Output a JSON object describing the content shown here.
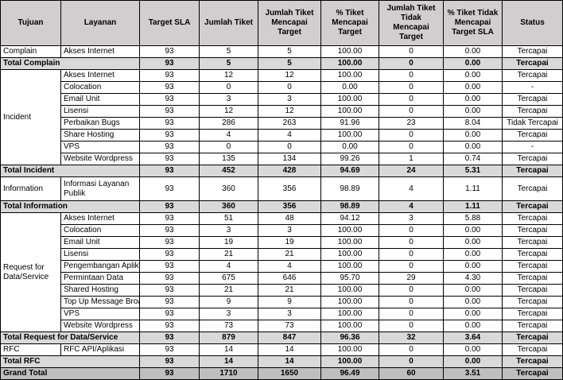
{
  "table": {
    "header": [
      "Tujuan",
      "Layanan",
      "Target SLA",
      "Jumlah Tiket",
      "Jumlah Tiket Mencapai Target",
      "% Tiket Mencapai Target",
      "Jumlah Tiket Tidak Mencapai Target",
      "% Tiket Tidak Mencapai Target SLA",
      "Status"
    ],
    "groups": [
      {
        "tujuan": "Complain",
        "rows": [
          [
            "Akses Internet",
            "93",
            "5",
            "5",
            "100.00",
            "0",
            "0.00",
            "Tercapai"
          ]
        ],
        "total": [
          "Total Complain",
          "93",
          "5",
          "5",
          "100.00",
          "0",
          "0.00",
          "Tercapai"
        ]
      },
      {
        "tujuan": "Incident",
        "rows": [
          [
            "Akses Internet",
            "93",
            "12",
            "12",
            "100.00",
            "0",
            "0.00",
            "Tercapai"
          ],
          [
            "Colocation",
            "93",
            "0",
            "0",
            "0.00",
            "0",
            "0.00",
            "-"
          ],
          [
            "Email Unit",
            "93",
            "3",
            "3",
            "100.00",
            "0",
            "0.00",
            "Tercapai"
          ],
          [
            "Lisensi",
            "93",
            "12",
            "12",
            "100.00",
            "0",
            "0.00",
            "Tercapai"
          ],
          [
            "Perbaikan Bugs",
            "93",
            "286",
            "263",
            "91.96",
            "23",
            "8.04",
            "Tidak Tercapai"
          ],
          [
            "Share Hosting",
            "93",
            "4",
            "4",
            "100.00",
            "0",
            "0.00",
            "Tercapai"
          ],
          [
            "VPS",
            "93",
            "0",
            "0",
            "0.00",
            "0",
            "0.00",
            "-"
          ],
          [
            "Website Wordpress",
            "93",
            "135",
            "134",
            "99.26",
            "1",
            "0.74",
            "Tercapai"
          ]
        ],
        "total": [
          "Total Incident",
          "93",
          "452",
          "428",
          "94.69",
          "24",
          "5.31",
          "Tercapai"
        ]
      },
      {
        "tujuan": "Information",
        "rows": [
          [
            "Informasi Layanan Publik",
            "93",
            "360",
            "356",
            "98.89",
            "4",
            "1.11",
            "Tercapai"
          ]
        ],
        "total": [
          "Total Information",
          "93",
          "360",
          "356",
          "98.89",
          "4",
          "1.11",
          "Tercapai"
        ]
      },
      {
        "tujuan": "Request for Data/Service",
        "rows": [
          [
            "Akses Internet",
            "93",
            "51",
            "48",
            "94.12",
            "3",
            "5.88",
            "Tercapai"
          ],
          [
            "Colocation",
            "93",
            "3",
            "3",
            "100.00",
            "0",
            "0.00",
            "Tercapai"
          ],
          [
            "Email Unit",
            "93",
            "19",
            "19",
            "100.00",
            "0",
            "0.00",
            "Tercapai"
          ],
          [
            "Lisensi",
            "93",
            "21",
            "21",
            "100.00",
            "0",
            "0.00",
            "Tercapai"
          ],
          [
            "Pengembangan Aplik",
            "93",
            "4",
            "4",
            "100.00",
            "0",
            "0.00",
            "Tercapai"
          ],
          [
            "Permintaan Data",
            "93",
            "675",
            "646",
            "95.70",
            "29",
            "4.30",
            "Tercapai"
          ],
          [
            "Shared Hosting",
            "93",
            "21",
            "21",
            "100.00",
            "0",
            "0.00",
            "Tercapai"
          ],
          [
            "Top Up Message Broa",
            "93",
            "9",
            "9",
            "100.00",
            "0",
            "0.00",
            "Tercapai"
          ],
          [
            "VPS",
            "93",
            "3",
            "3",
            "100.00",
            "0",
            "0.00",
            "Tercapai"
          ],
          [
            "Website Wordpress",
            "93",
            "73",
            "73",
            "100.00",
            "0",
            "0.00",
            "Tercapai"
          ]
        ],
        "total": [
          "Total Request for Data/Service",
          "93",
          "879",
          "847",
          "96.36",
          "32",
          "3.64",
          "Tercapai"
        ]
      },
      {
        "tujuan": "RFC",
        "rows": [
          [
            "RFC API/Aplikasi",
            "93",
            "14",
            "14",
            "100.00",
            "0",
            "0.00",
            "Tercapai"
          ]
        ],
        "total": [
          "Total RFC",
          "93",
          "14",
          "14",
          "100.00",
          "0",
          "0.00",
          "Tercapai"
        ]
      }
    ],
    "grand_total": [
      "Grand Total",
      "93",
      "1710",
      "1650",
      "96.49",
      "60",
      "3.51",
      "Tercapai"
    ]
  }
}
